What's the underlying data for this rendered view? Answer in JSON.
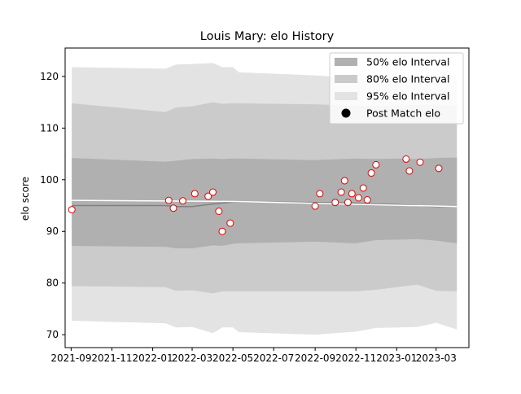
{
  "chart_data": {
    "type": "line",
    "title": "Louis Mary: elo History",
    "xlabel": "",
    "ylabel": "elo score",
    "xlim": [
      "2021-08-23",
      "2023-04-19"
    ],
    "ylim": [
      67.5,
      125.5
    ],
    "x_ticks": [
      "2021-09",
      "2021-11",
      "2022-01",
      "2022-03",
      "2022-05",
      "2022-07",
      "2022-09",
      "2022-11",
      "2023-01",
      "2023-03"
    ],
    "y_ticks": [
      70,
      80,
      90,
      100,
      110,
      120
    ],
    "grid": false,
    "legend": {
      "placement": "top-right",
      "entries": [
        "50% elo Interval",
        "80% elo Interval",
        "95% elo Interval",
        "Post Match elo"
      ]
    },
    "colors": {
      "band_50": "#b0b0b0",
      "band_80": "#cbcbcb",
      "band_95": "#e3e3e3",
      "mean_line": "#808080",
      "marker_edge": "#e00000",
      "marker_fill": "#ffffff"
    },
    "bands": {
      "dates": [
        "2021-09-02",
        "2022-01-20",
        "2022-02-05",
        "2022-03-01",
        "2022-04-01",
        "2022-04-15",
        "2022-05-01",
        "2022-05-10",
        "2022-09-01",
        "2022-11-01",
        "2022-12-01",
        "2023-01-01",
        "2023-02-01",
        "2023-03-01",
        "2023-04-01"
      ],
      "mean": [
        95.0,
        95.0,
        94.8,
        94.8,
        95.3,
        95.5,
        95.7,
        95.7,
        95.6,
        95.5,
        95.3,
        95.2,
        95.0,
        94.8,
        94.8
      ],
      "p50_low": [
        87.2,
        87.0,
        86.7,
        86.7,
        87.3,
        87.2,
        87.6,
        87.7,
        88.0,
        87.7,
        88.3,
        88.4,
        88.5,
        88.2,
        87.7
      ],
      "p50_high": [
        104.2,
        103.5,
        103.7,
        104.0,
        104.1,
        104.0,
        104.1,
        104.1,
        103.8,
        104.1,
        104.0,
        104.1,
        104.0,
        104.2,
        104.3
      ],
      "p80_low": [
        79.4,
        79.2,
        78.5,
        78.6,
        78.0,
        78.4,
        78.4,
        78.4,
        78.4,
        78.4,
        78.7,
        79.2,
        79.7,
        78.5,
        78.4
      ],
      "p80_high": [
        114.8,
        113.1,
        114.0,
        114.2,
        115.0,
        114.7,
        114.8,
        114.8,
        114.6,
        114.3,
        114.3,
        114.4,
        114.5,
        114.5,
        114.3
      ],
      "p95_low": [
        72.7,
        72.2,
        71.4,
        71.5,
        70.3,
        71.4,
        71.4,
        70.5,
        70.0,
        70.6,
        71.3,
        71.4,
        71.5,
        72.3,
        71.0
      ],
      "p95_high": [
        121.8,
        121.5,
        122.3,
        122.4,
        122.6,
        121.8,
        121.8,
        120.8,
        120.2,
        119.6,
        120.2,
        120.2,
        120.2,
        120.2,
        120.3
      ]
    },
    "post_match_line": {
      "dates": [
        "2021-09-02",
        "2022-05-01",
        "2023-04-01"
      ],
      "values": [
        96.0,
        95.8,
        94.8
      ]
    },
    "series": [
      {
        "name": "Post Match elo",
        "x": [
          "2021-09-02",
          "2022-01-25",
          "2022-02-01",
          "2022-02-15",
          "2022-03-05",
          "2022-03-25",
          "2022-04-01",
          "2022-04-10",
          "2022-04-15",
          "2022-04-27",
          "2022-09-01",
          "2022-09-08",
          "2022-10-01",
          "2022-10-10",
          "2022-10-15",
          "2022-10-20",
          "2022-10-26",
          "2022-11-05",
          "2022-11-12",
          "2022-11-18",
          "2022-11-24",
          "2022-12-01",
          "2023-01-15",
          "2023-01-20",
          "2023-02-05",
          "2023-03-05"
        ],
        "y": [
          94.2,
          96.0,
          94.5,
          95.9,
          97.3,
          96.8,
          97.6,
          93.9,
          90.0,
          91.6,
          94.9,
          97.3,
          95.6,
          97.6,
          99.8,
          95.6,
          97.3,
          96.5,
          98.4,
          96.1,
          101.3,
          102.9,
          104.0,
          101.7,
          103.4,
          102.2
        ]
      }
    ]
  }
}
